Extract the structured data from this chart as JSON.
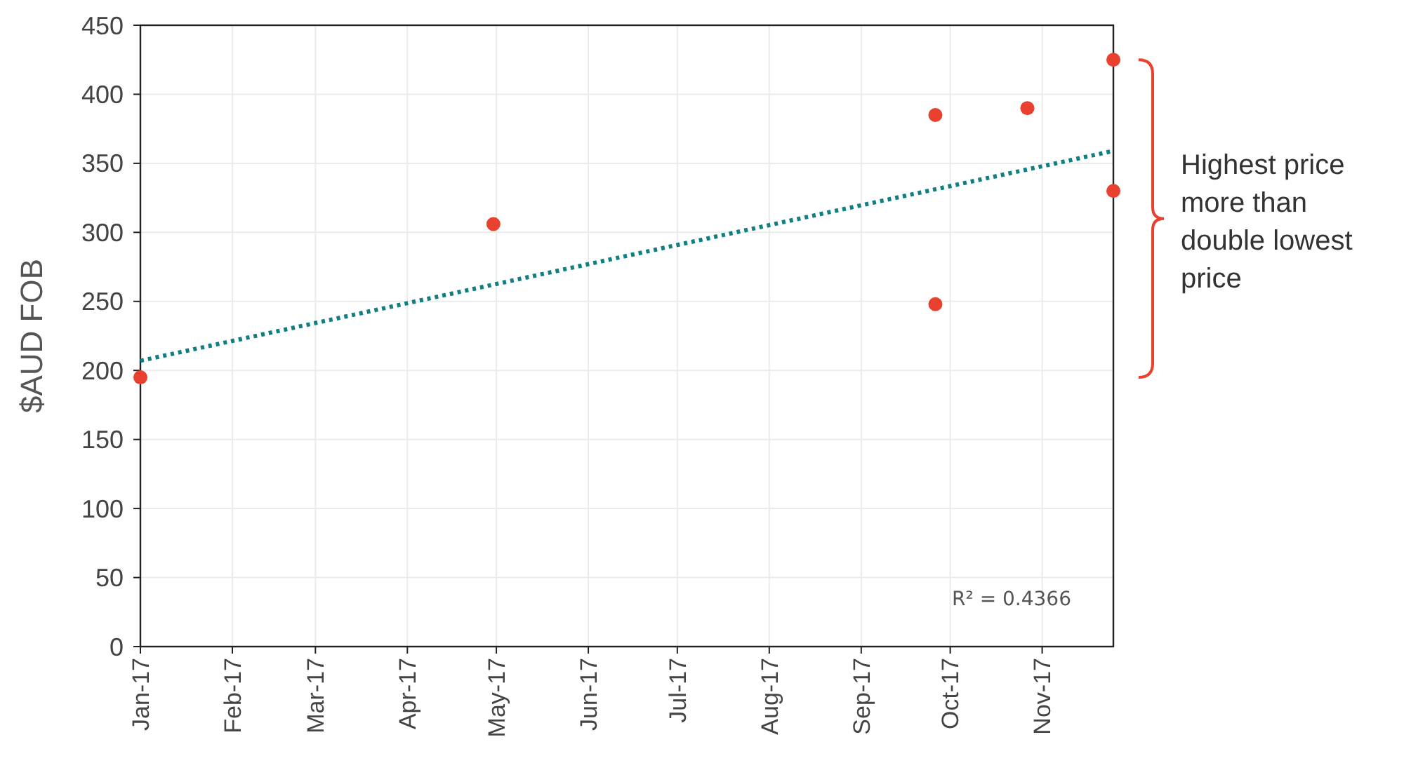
{
  "chart_data": {
    "type": "scatter",
    "ylabel": "$AUD FOB",
    "series": [
      {
        "type": "scatter",
        "color": "#e8412f",
        "marker": "circle",
        "x": [
          "2017-01-01",
          "2017-04-30",
          "2017-09-26",
          "2017-09-26",
          "2017-10-27",
          "2017-11-25",
          "2017-11-25"
        ],
        "values": [
          195,
          306,
          385,
          248,
          390,
          425,
          330
        ]
      },
      {
        "type": "line",
        "color": "#0f7f80",
        "line_style": "dotted",
        "x": [
          "2017-01-01",
          "2017-11-25"
        ],
        "values": [
          207,
          359
        ]
      }
    ],
    "xlim": [
      "2017-01-01",
      "2017-11-25"
    ],
    "xticks": [
      {
        "value": "2017-01-01",
        "label": "Jan-17"
      },
      {
        "value": "2017-02-01",
        "label": "Feb-17"
      },
      {
        "value": "2017-03-01",
        "label": "Mar-17"
      },
      {
        "value": "2017-04-01",
        "label": "Apr-17"
      },
      {
        "value": "2017-05-01",
        "label": "May-17"
      },
      {
        "value": "2017-06-01",
        "label": "Jun-17"
      },
      {
        "value": "2017-07-01",
        "label": "Jul-17"
      },
      {
        "value": "2017-08-01",
        "label": "Aug-17"
      },
      {
        "value": "2017-09-01",
        "label": "Sep-17"
      },
      {
        "value": "2017-10-01",
        "label": "Oct-17"
      },
      {
        "value": "2017-11-01",
        "label": "Nov-17"
      }
    ],
    "ylim": [
      0,
      450
    ],
    "yticks": [
      0,
      50,
      100,
      150,
      200,
      250,
      300,
      350,
      400,
      450
    ],
    "grid": true,
    "annotations": [
      "R² = 0.4366",
      "Highest price more than double lowest price"
    ]
  }
}
